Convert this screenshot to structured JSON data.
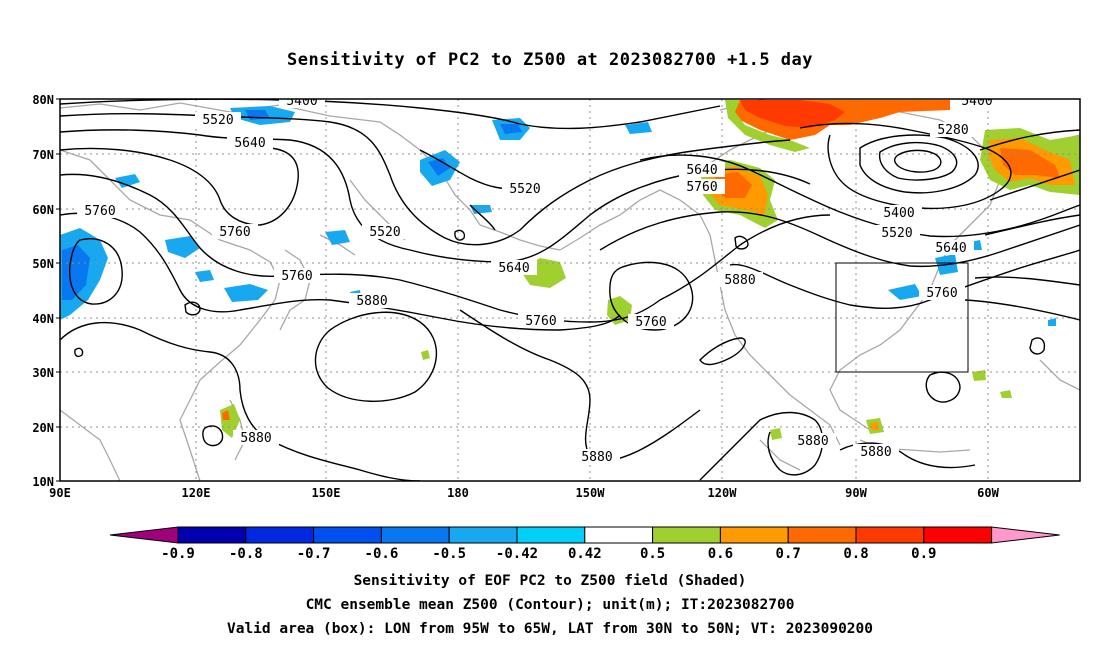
{
  "title": "Sensitivity of PC2 to Z500 at 2023082700 +1.5 day",
  "axes": {
    "lat_ticks": [
      "80N",
      "70N",
      "60N",
      "50N",
      "40N",
      "30N",
      "20N",
      "10N"
    ],
    "lon_ticks": [
      "90E",
      "120E",
      "150E",
      "180",
      "150W",
      "120W",
      "90W",
      "60W"
    ]
  },
  "contour_labels": [
    {
      "text": "5400",
      "key": "c1"
    },
    {
      "text": "5520",
      "key": "c2"
    },
    {
      "text": "5640",
      "key": "c3"
    },
    {
      "text": "5760",
      "key": "c4"
    },
    {
      "text": "5760",
      "key": "c5"
    },
    {
      "text": "5520",
      "key": "c6"
    },
    {
      "text": "5520",
      "key": "c7"
    },
    {
      "text": "5760",
      "key": "c8"
    },
    {
      "text": "5880",
      "key": "c9"
    },
    {
      "text": "5640",
      "key": "c10"
    },
    {
      "text": "5760",
      "key": "c11"
    },
    {
      "text": "5760",
      "key": "c12"
    },
    {
      "text": "5640",
      "key": "c13"
    },
    {
      "text": "5760",
      "key": "c14"
    },
    {
      "text": "5880",
      "key": "c15"
    },
    {
      "text": "5400",
      "key": "c16"
    },
    {
      "text": "5280",
      "key": "c17"
    },
    {
      "text": "5400",
      "key": "c18"
    },
    {
      "text": "5520",
      "key": "c19"
    },
    {
      "text": "5640",
      "key": "c20"
    },
    {
      "text": "5760",
      "key": "c21"
    },
    {
      "text": "5880",
      "key": "c22"
    },
    {
      "text": "5880",
      "key": "c23"
    },
    {
      "text": "5880",
      "key": "c24"
    },
    {
      "text": "5880",
      "key": "c25"
    }
  ],
  "colorbar": {
    "levels": [
      "-0.9",
      "-0.8",
      "-0.7",
      "-0.6",
      "-0.5",
      "-0.42",
      "0.42",
      "0.5",
      "0.6",
      "0.7",
      "0.8",
      "0.9"
    ],
    "colors": [
      "#a0007a",
      "#0000b0",
      "#0028e0",
      "#0050f0",
      "#0878f0",
      "#18a8f0",
      "#00d0f8",
      "#ffffff",
      "#a0d030",
      "#ff9a00",
      "#ff6a00",
      "#ff3a00",
      "#ff0000",
      "#ff99cc"
    ]
  },
  "footer": {
    "line1": "Sensitivity of EOF PC2 to Z500 field (Shaded)",
    "line2": "CMC ensemble mean Z500 (Contour); unit(m); IT:2023082700",
    "line3": "Valid area (box): LON from 95W to 65W, LAT from 30N to 50N; VT: 2023090200"
  }
}
